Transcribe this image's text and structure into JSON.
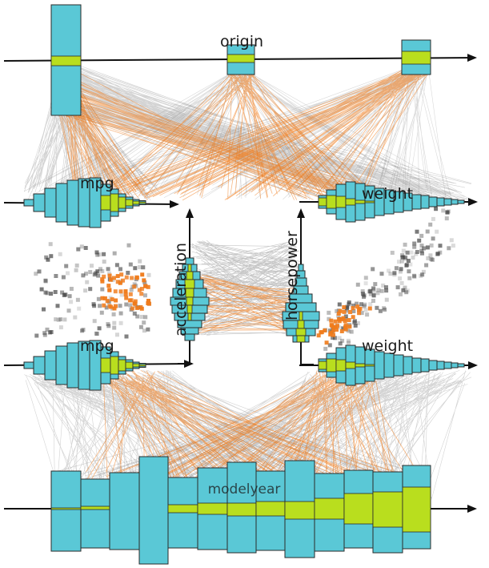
{
  "colors": {
    "bar": "#5ac8d6",
    "highlight": "#b9de1e",
    "edge": "#2b2b2b",
    "line_gray": "#808080",
    "line_orange": "#f07b1b",
    "axis": "#111111"
  },
  "axes": {
    "origin": "origin",
    "mpg_top": "mpg",
    "weight_top": "weight",
    "mpg_bottom": "mpg",
    "weight_bottom": "weight",
    "acceleration": "acceleration",
    "horsepower": "horsepower",
    "modelyear": "modelyear"
  }
}
